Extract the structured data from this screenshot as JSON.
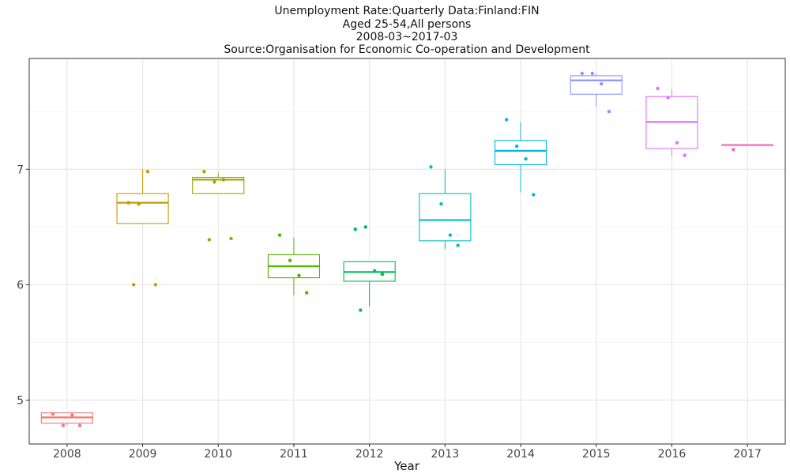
{
  "chart_data": {
    "type": "box",
    "title": [
      "Unemployment Rate:Quarterly Data:Finland:FIN",
      "Aged 25-54,All persons",
      "2008-03~2017-03",
      "Source:Organisation for Economic Co-operation and Development"
    ],
    "xlabel": "Year",
    "ylabel": "",
    "ylim": [
      4.62,
      7.96
    ],
    "yticks": [
      5,
      6,
      7
    ],
    "ytick_labels": [
      "5",
      "6",
      "7"
    ],
    "grid": true,
    "legend": "none",
    "categories": [
      "2008",
      "2009",
      "2010",
      "2011",
      "2012",
      "2013",
      "2014",
      "2015",
      "2016",
      "2017"
    ],
    "boxes": [
      {
        "year": "2008",
        "color": "#F8766D",
        "min": 4.78,
        "q1": 4.8,
        "median": 4.85,
        "q3": 4.89,
        "max": 4.89,
        "points": [
          4.88,
          4.78,
          4.87,
          4.78
        ]
      },
      {
        "year": "2009",
        "color": "#C49A00",
        "min": 6.53,
        "q1": 6.53,
        "median": 6.71,
        "q3": 6.79,
        "max": 7.0,
        "points": [
          6.71,
          6.7,
          6.98,
          6.0,
          6.0
        ]
      },
      {
        "year": "2010",
        "color": "#99A800",
        "min": 6.79,
        "q1": 6.79,
        "median": 6.91,
        "q3": 6.93,
        "max": 6.97,
        "points": [
          6.98,
          6.89,
          6.91,
          6.4,
          6.39
        ]
      },
      {
        "year": "2011",
        "color": "#53B400",
        "min": 5.91,
        "q1": 6.06,
        "median": 6.16,
        "q3": 6.26,
        "max": 6.41,
        "points": [
          6.43,
          6.21,
          6.08,
          5.93
        ]
      },
      {
        "year": "2012",
        "color": "#00BC56",
        "min": 5.81,
        "q1": 6.03,
        "median": 6.11,
        "q3": 6.2,
        "max": 6.2,
        "points": [
          6.48,
          6.5,
          6.12,
          6.09,
          5.78
        ]
      },
      {
        "year": "2013",
        "color": "#00BFC4",
        "min": 6.31,
        "q1": 6.38,
        "median": 6.56,
        "q3": 6.79,
        "max": 7.0,
        "points": [
          7.02,
          6.7,
          6.43,
          6.34
        ]
      },
      {
        "year": "2014",
        "color": "#00B8E7",
        "min": 6.8,
        "q1": 7.04,
        "median": 7.16,
        "q3": 7.25,
        "max": 7.41,
        "points": [
          7.43,
          7.2,
          7.09,
          6.78
        ]
      },
      {
        "year": "2015",
        "color": "#8C94FF",
        "min": 7.54,
        "q1": 7.65,
        "median": 7.77,
        "q3": 7.81,
        "max": 7.83,
        "points": [
          7.83,
          7.83,
          7.74,
          7.5
        ]
      },
      {
        "year": "2016",
        "color": "#DE71F8",
        "min": 7.11,
        "q1": 7.18,
        "median": 7.41,
        "q3": 7.63,
        "max": 7.69,
        "points": [
          7.7,
          7.62,
          7.23,
          7.12
        ]
      },
      {
        "year": "2017",
        "color": "#FF62BC",
        "min": 7.21,
        "q1": 7.21,
        "median": 7.21,
        "q3": 7.21,
        "max": 7.21,
        "points": [
          7.17
        ]
      }
    ]
  }
}
